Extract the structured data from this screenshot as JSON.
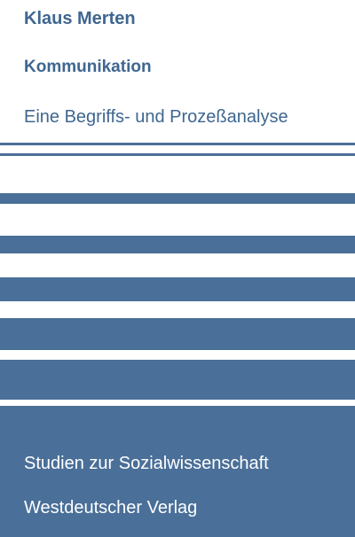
{
  "cover": {
    "author": "Klaus Merten",
    "title": "Kommunikation",
    "subtitle": "Eine Begriffs- und Prozeßanalyse",
    "series": "Studien zur Sozialwissenschaft",
    "publisher": "Westdeutscher Verlag",
    "colors": {
      "text": "#3f6690",
      "stripe": "#4a6f98",
      "background": "#ffffff",
      "band_text": "#ffffff"
    }
  }
}
